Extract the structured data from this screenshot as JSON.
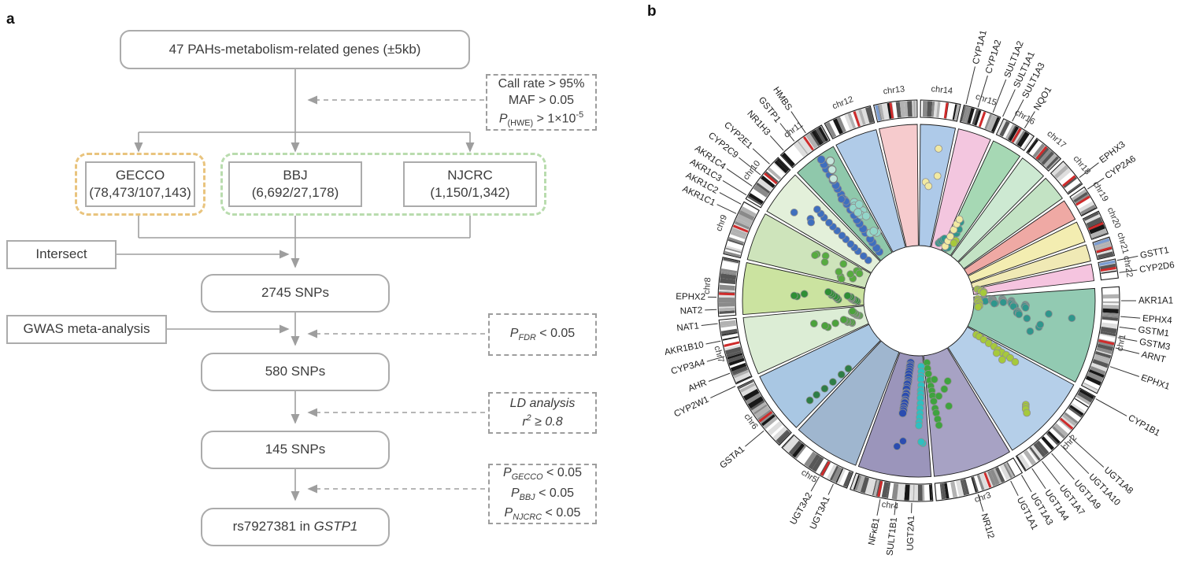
{
  "panels": {
    "a": "a",
    "b": "b"
  },
  "flowchart": {
    "top_box": "47 PAHs-metabolism-related genes (±5kb)",
    "qc": {
      "line1": "Call rate > 95%",
      "line2": "MAF > 0.05",
      "p": "P",
      "p_sub": "(HWE)",
      "p_mid": " > 1×10",
      "p_sup": "-5"
    },
    "cohorts": {
      "gecco": {
        "name": "GECCO",
        "counts": "(78,473/107,143)"
      },
      "bbj": {
        "name": "BBJ",
        "counts": "(6,692/27,178)"
      },
      "njcrc": {
        "name": "NJCRC",
        "counts": "(1,150/1,342)"
      }
    },
    "intersect": "Intersect",
    "snps_2745": "2745 SNPs",
    "gwas": "GWAS meta-analysis",
    "pfdr": {
      "p": "P",
      "sub": "FDR",
      "rest": " < 0.05"
    },
    "snps_580": "580 SNPs",
    "ld": {
      "line1": "LD analysis",
      "r": "r",
      "sup": "2",
      "rest": " ≥ 0.8"
    },
    "snps_145": "145 SNPs",
    "pcons": [
      {
        "p": "P",
        "sub": "GECCO",
        "rest": " < 0.05"
      },
      {
        "p": "P",
        "sub": "BBJ",
        "rest": " < 0.05"
      },
      {
        "p": "P",
        "sub": "NJCRC",
        "rest": " < 0.05"
      }
    ],
    "result": {
      "prefix": "rs7927381 in ",
      "gene": "GSTP1"
    }
  },
  "chart_data": {
    "type": "circos",
    "title": "",
    "description": "Circular plot: 22 chromosome sectors with SNP association scatter, outer ideogram ring, 47 PAHs-metabolism-related gene labels.",
    "start_angle_deg": -4,
    "gap_deg": 1.0,
    "chromosomes": [
      {
        "name": "chr1",
        "span_deg": 31.5,
        "color": "#92cab2"
      },
      {
        "name": "chr2",
        "span_deg": 29.5,
        "color": "#b5cfe9"
      },
      {
        "name": "chr3",
        "span_deg": 26.0,
        "color": "#a7a2c4"
      },
      {
        "name": "chr4",
        "span_deg": 24.0,
        "color": "#9b95bb"
      },
      {
        "name": "chr5",
        "span_deg": 22.0,
        "color": "#9fb6cf"
      },
      {
        "name": "chr6",
        "span_deg": 20.5,
        "color": "#a9c7e3"
      },
      {
        "name": "chr7",
        "span_deg": 19.0,
        "color": "#dcedd5"
      },
      {
        "name": "chr8",
        "span_deg": 17.0,
        "color": "#cbe3a0"
      },
      {
        "name": "chr9",
        "span_deg": 16.0,
        "color": "#cee4bb"
      },
      {
        "name": "chr10",
        "span_deg": 15.0,
        "color": "#e3f0da"
      },
      {
        "name": "chr11",
        "span_deg": 14.5,
        "color": "#8fc8ab"
      },
      {
        "name": "chr12",
        "span_deg": 14.0,
        "color": "#b0cbe8"
      },
      {
        "name": "chr13",
        "span_deg": 12.5,
        "color": "#f6cbcd"
      },
      {
        "name": "chr14",
        "span_deg": 11.5,
        "color": "#aecae9"
      },
      {
        "name": "chr15",
        "span_deg": 11.0,
        "color": "#f3c6df"
      },
      {
        "name": "chr16",
        "span_deg": 10.0,
        "color": "#a6d8b4"
      },
      {
        "name": "chr17",
        "span_deg": 9.0,
        "color": "#cde9d2"
      },
      {
        "name": "chr18",
        "span_deg": 8.5,
        "color": "#c3e3c4"
      },
      {
        "name": "chr19",
        "span_deg": 7.0,
        "color": "#efa9a4"
      },
      {
        "name": "chr20",
        "span_deg": 7.0,
        "color": "#f3edb1"
      },
      {
        "name": "chr21",
        "span_deg": 5.5,
        "color": "#f0e9b5"
      },
      {
        "name": "chr22",
        "span_deg": 5.5,
        "color": "#f5c4df"
      }
    ],
    "blue_band_chroms": [
      "chr13",
      "chr21",
      "chr22"
    ],
    "gene_labels": [
      {
        "gene": "GSTT1",
        "angle": 348.5,
        "ext": 30
      },
      {
        "gene": "CYP2D6",
        "angle": 352.0,
        "ext": 26
      },
      {
        "gene": "AKR1A1",
        "angle": 0.0,
        "ext": 22
      },
      {
        "gene": "EPHX4",
        "angle": 4.5,
        "ext": 28
      },
      {
        "gene": "GSTM1",
        "angle": 7.5,
        "ext": 24
      },
      {
        "gene": "GSTM3",
        "angle": 10.5,
        "ext": 28
      },
      {
        "gene": "ARNT",
        "angle": 13.5,
        "ext": 34
      },
      {
        "gene": "EPHX1",
        "angle": 19.0,
        "ext": 42
      },
      {
        "gene": "CYP1B1",
        "angle": 29.0,
        "ext": 48
      },
      {
        "gene": "UGT1A8",
        "angle": 42.0,
        "ext": 62
      },
      {
        "gene": "UGT1A10",
        "angle": 45.5,
        "ext": 54
      },
      {
        "gene": "UGT1A9",
        "angle": 49.0,
        "ext": 47
      },
      {
        "gene": "UGT1A7",
        "angle": 52.5,
        "ext": 40
      },
      {
        "gene": "UGT1A4",
        "angle": 56.0,
        "ext": 34
      },
      {
        "gene": "UGT1A3",
        "angle": 59.5,
        "ext": 28
      },
      {
        "gene": "UGT1A1",
        "angle": 63.0,
        "ext": 24
      },
      {
        "gene": "NR1I2",
        "angle": 73.0,
        "ext": 26
      },
      {
        "gene": "UGT2A1",
        "angle": 92.0,
        "ext": 16
      },
      {
        "gene": "SULT1B1",
        "angle": 96.5,
        "ext": 20
      },
      {
        "gene": "NFκB1",
        "angle": 101.0,
        "ext": 24
      },
      {
        "gene": "UGT3A1",
        "angle": 115.0,
        "ext": 18
      },
      {
        "gene": "UGT3A2",
        "angle": 119.5,
        "ext": 24
      },
      {
        "gene": "GSTA1",
        "angle": 140.0,
        "ext": 34
      },
      {
        "gene": "CYP2W1",
        "angle": 155.0,
        "ext": 38
      },
      {
        "gene": "AHR",
        "angle": 159.0,
        "ext": 32
      },
      {
        "gene": "CYP3A4",
        "angle": 164.0,
        "ext": 26
      },
      {
        "gene": "AKR1B10",
        "angle": 168.5,
        "ext": 22
      },
      {
        "gene": "NAT1",
        "angle": 173.5,
        "ext": 24
      },
      {
        "gene": "NAT2",
        "angle": 177.5,
        "ext": 18
      },
      {
        "gene": "EPHX2",
        "angle": 181.0,
        "ext": 14
      },
      {
        "gene": "AKR1C1",
        "angle": 205.5,
        "ext": 30
      },
      {
        "gene": "AKR1C2",
        "angle": 208.5,
        "ext": 34
      },
      {
        "gene": "AKR1C3",
        "angle": 211.5,
        "ext": 38
      },
      {
        "gene": "AKR1C4",
        "angle": 214.5,
        "ext": 42
      },
      {
        "gene": "CYP2C9",
        "angle": 218.5,
        "ext": 38
      },
      {
        "gene": "CYP2E1",
        "angle": 222.5,
        "ext": 32
      },
      {
        "gene": "NR1H3",
        "angle": 228.0,
        "ext": 28
      },
      {
        "gene": "GSTP1",
        "angle": 232.0,
        "ext": 32
      },
      {
        "gene": "HMBS",
        "angle": 236.0,
        "ext": 36
      },
      {
        "gene": "CYP1A1",
        "angle": 283.5,
        "ext": 52
      },
      {
        "gene": "CYP1A2",
        "angle": 287.0,
        "ext": 45
      },
      {
        "gene": "SULT1A2",
        "angle": 291.5,
        "ext": 48
      },
      {
        "gene": "SULT1A1",
        "angle": 294.5,
        "ext": 41
      },
      {
        "gene": "SULT1A3",
        "angle": 297.5,
        "ext": 34
      },
      {
        "gene": "NQO1",
        "angle": 301.5,
        "ext": 28
      },
      {
        "gene": "EPHX3",
        "angle": 322.5,
        "ext": 34
      },
      {
        "gene": "CYP2A6",
        "angle": 326.5,
        "ext": 28
      }
    ],
    "snp_clusters": [
      {
        "chr": "chr1",
        "color": "#2f968c",
        "kind": "streak",
        "a0": 0.04,
        "a1": 0.11,
        "r0": 0.06,
        "r1": 0.08,
        "n": 12,
        "s": 4.5
      },
      {
        "chr": "chr1",
        "color": "#2f968c",
        "kind": "streak",
        "a0": 0.05,
        "a1": 0.17,
        "r0": 0.14,
        "r1": 0.17,
        "n": 12,
        "s": 4.5
      },
      {
        "chr": "chr1",
        "color": "#2f968c",
        "kind": "streak",
        "a0": 0.06,
        "a1": 0.13,
        "r0": 0.23,
        "r1": 0.25,
        "n": 8,
        "s": 4.5
      },
      {
        "chr": "chr1",
        "color": "#2f968c",
        "kind": "streak",
        "a0": 0.1,
        "a1": 0.22,
        "r0": 0.31,
        "r1": 0.34,
        "n": 10,
        "s": 4.5
      },
      {
        "chr": "chr1",
        "color": "#2f968c",
        "kind": "streak",
        "a0": 0.17,
        "a1": 0.22,
        "r0": 0.43,
        "r1": 0.44,
        "n": 5,
        "s": 4.5
      },
      {
        "chr": "chr1",
        "color": "#2f968c",
        "kind": "streak",
        "a0": 0.3,
        "a1": 0.36,
        "r0": 0.36,
        "r1": 0.38,
        "n": 5,
        "s": 4.5
      },
      {
        "chr": "chr1",
        "color": "#2f968c",
        "kind": "scatter",
        "a0": 0.2,
        "a1": 0.8,
        "r0": 0.45,
        "r1": 0.85,
        "n": 6,
        "s": 4.5
      },
      {
        "chr": "chr1",
        "color": "#a6c93b",
        "kind": "streak",
        "a0": 0.03,
        "a1": 0.3,
        "r0": 0.02,
        "r1": 0.03,
        "n": 7,
        "s": 4.5
      },
      {
        "chr": "chr22",
        "color": "#a6c93b",
        "kind": "streak",
        "a0": 0.15,
        "a1": 0.95,
        "r0": 0.03,
        "r1": 0.08,
        "n": 6,
        "s": 4.5
      },
      {
        "chr": "chr2",
        "color": "#a6c93b",
        "kind": "streak",
        "a0": 0.03,
        "a1": 0.1,
        "r0": 0.08,
        "r1": 0.5,
        "n": 10,
        "s": 4.5
      },
      {
        "chr": "chr2",
        "color": "#a6c93b",
        "kind": "streak",
        "a0": 0.54,
        "a1": 0.6,
        "r0": 0.8,
        "r1": 0.86,
        "n": 4,
        "s": 4.5
      },
      {
        "chr": "chr2",
        "color": "#a6c93b",
        "kind": "scatter",
        "a0": 0.15,
        "a1": 0.4,
        "r0": 0.3,
        "r1": 0.6,
        "n": 2,
        "s": 4.5
      },
      {
        "chr": "chr3",
        "color": "#3fa33f",
        "kind": "streak",
        "a0": 0.95,
        "a1": 0.87,
        "r0": 0.05,
        "r1": 0.6,
        "n": 12,
        "s": 4.5
      },
      {
        "chr": "chr3",
        "color": "#3fa33f",
        "kind": "scatter",
        "a0": 0.3,
        "a1": 0.85,
        "r0": 0.1,
        "r1": 0.5,
        "n": 5,
        "s": 4.5
      },
      {
        "chr": "chr4",
        "color": "#2fbfc0",
        "kind": "streak",
        "a0": 0.04,
        "a1": 0.14,
        "r0": 0.08,
        "r1": 0.6,
        "n": 14,
        "s": 4.5
      },
      {
        "chr": "chr4",
        "color": "#2fbfc0",
        "kind": "scatter",
        "a0": 0.02,
        "a1": 0.12,
        "r0": 0.65,
        "r1": 0.8,
        "n": 2,
        "s": 4.5
      },
      {
        "chr": "chr4",
        "color": "#2b4cb0",
        "kind": "streak",
        "a0": 0.48,
        "a1": 0.5,
        "r0": 0.05,
        "r1": 0.5,
        "n": 22,
        "s": 5
      },
      {
        "chr": "chr4",
        "color": "#2b4cb0",
        "kind": "scatter",
        "a0": 0.4,
        "a1": 0.6,
        "r0": 0.55,
        "r1": 0.8,
        "n": 2,
        "s": 4.5
      },
      {
        "chr": "chr6",
        "color": "#2e7d46",
        "kind": "streak",
        "a0": 0.06,
        "a1": 0.15,
        "r0": 0.35,
        "r1": 0.8,
        "n": 6,
        "s": 4.5
      },
      {
        "chr": "chr7",
        "color": "#4ca23c",
        "kind": "streak",
        "a0": 0.3,
        "a1": 0.55,
        "r0": 0.12,
        "r1": 0.18,
        "n": 8,
        "s": 4.5
      },
      {
        "chr": "chr7",
        "color": "#4ca23c",
        "kind": "streak",
        "a0": 0.55,
        "a1": 0.85,
        "r0": 0.04,
        "r1": 0.1,
        "n": 10,
        "s": 4.5
      },
      {
        "chr": "chr7",
        "color": "#4ca23c",
        "kind": "scatter",
        "a0": 0.35,
        "a1": 0.7,
        "r0": 0.25,
        "r1": 0.45,
        "n": 4,
        "s": 4.5
      },
      {
        "chr": "chr8",
        "color": "#2f8f35",
        "kind": "streak",
        "a0": 0.2,
        "a1": 0.5,
        "r0": 0.05,
        "r1": 0.12,
        "n": 12,
        "s": 4.5
      },
      {
        "chr": "chr8",
        "color": "#2f8f35",
        "kind": "streak",
        "a0": 0.3,
        "a1": 0.6,
        "r0": 0.2,
        "r1": 0.3,
        "n": 8,
        "s": 4.5
      },
      {
        "chr": "chr8",
        "color": "#2f8f35",
        "kind": "scatter",
        "a0": 0.35,
        "a1": 0.6,
        "r0": 0.45,
        "r1": 0.6,
        "n": 3,
        "s": 4.5
      },
      {
        "chr": "chr9",
        "color": "#57ab40",
        "kind": "scatter",
        "a0": 0.1,
        "a1": 0.95,
        "r0": 0.05,
        "r1": 0.5,
        "n": 13,
        "s": 4.5
      },
      {
        "chr": "chr10",
        "color": "#3f6fbe",
        "kind": "streak",
        "a0": 0.55,
        "a1": 0.78,
        "r0": 0.08,
        "r1": 0.7,
        "n": 13,
        "s": 4.5
      },
      {
        "chr": "chr10",
        "color": "#3f6fbe",
        "kind": "scatter",
        "a0": 0.3,
        "a1": 0.5,
        "r0": 0.6,
        "r1": 0.85,
        "n": 3,
        "s": 4.5
      },
      {
        "chr": "chr11",
        "color": "#3f6fbe",
        "kind": "streak",
        "a0": 0.3,
        "a1": 0.62,
        "r0": 0.05,
        "r1": 1.0,
        "n": 20,
        "s": 5
      },
      {
        "chr": "chr11",
        "color": "#93d6c9",
        "kind": "scatter",
        "a0": 0.55,
        "a1": 0.85,
        "r0": 0.2,
        "r1": 0.55,
        "n": 12,
        "s": 5
      },
      {
        "chr": "chr11",
        "color": "#93d6c9",
        "kind": "rings",
        "a0": 0.6,
        "a1": 0.8,
        "r0": 0.8,
        "r1": 0.95,
        "n": 3,
        "s": 5
      },
      {
        "chr": "chr11",
        "color": "#3f6fbe",
        "kind": "scatter",
        "a0": 0.35,
        "a1": 0.55,
        "r0": 0.55,
        "r1": 0.8,
        "n": 3,
        "s": 4.5
      },
      {
        "chr": "chr14",
        "color": "#f1e9a2",
        "kind": "scatter",
        "a0": 0.2,
        "a1": 0.8,
        "r0": 0.45,
        "r1": 0.9,
        "n": 4,
        "s": 4.5
      },
      {
        "chr": "chr15",
        "color": "#2f968c",
        "kind": "streak",
        "a0": 0.55,
        "a1": 0.9,
        "r0": 0.04,
        "r1": 0.1,
        "n": 5,
        "s": 4.5
      },
      {
        "chr": "chr16",
        "color": "#2f968c",
        "kind": "streak",
        "a0": 0.2,
        "a1": 0.28,
        "r0": 0.03,
        "r1": 0.28,
        "n": 6,
        "s": 4.5
      },
      {
        "chr": "chr16",
        "color": "#2f968c",
        "kind": "streak",
        "a0": 0.36,
        "a1": 0.44,
        "r0": 0.03,
        "r1": 0.22,
        "n": 5,
        "s": 4.5
      },
      {
        "chr": "chr16",
        "color": "#f1e9a2",
        "kind": "streak",
        "a0": 0.05,
        "a1": 0.12,
        "r0": 0.03,
        "r1": 0.3,
        "n": 6,
        "s": 4.5
      },
      {
        "chr": "chr16",
        "color": "#a6c93b",
        "kind": "scatter",
        "a0": 0.5,
        "a1": 0.7,
        "r0": 0.05,
        "r1": 0.15,
        "n": 2,
        "s": 4.5
      }
    ]
  }
}
